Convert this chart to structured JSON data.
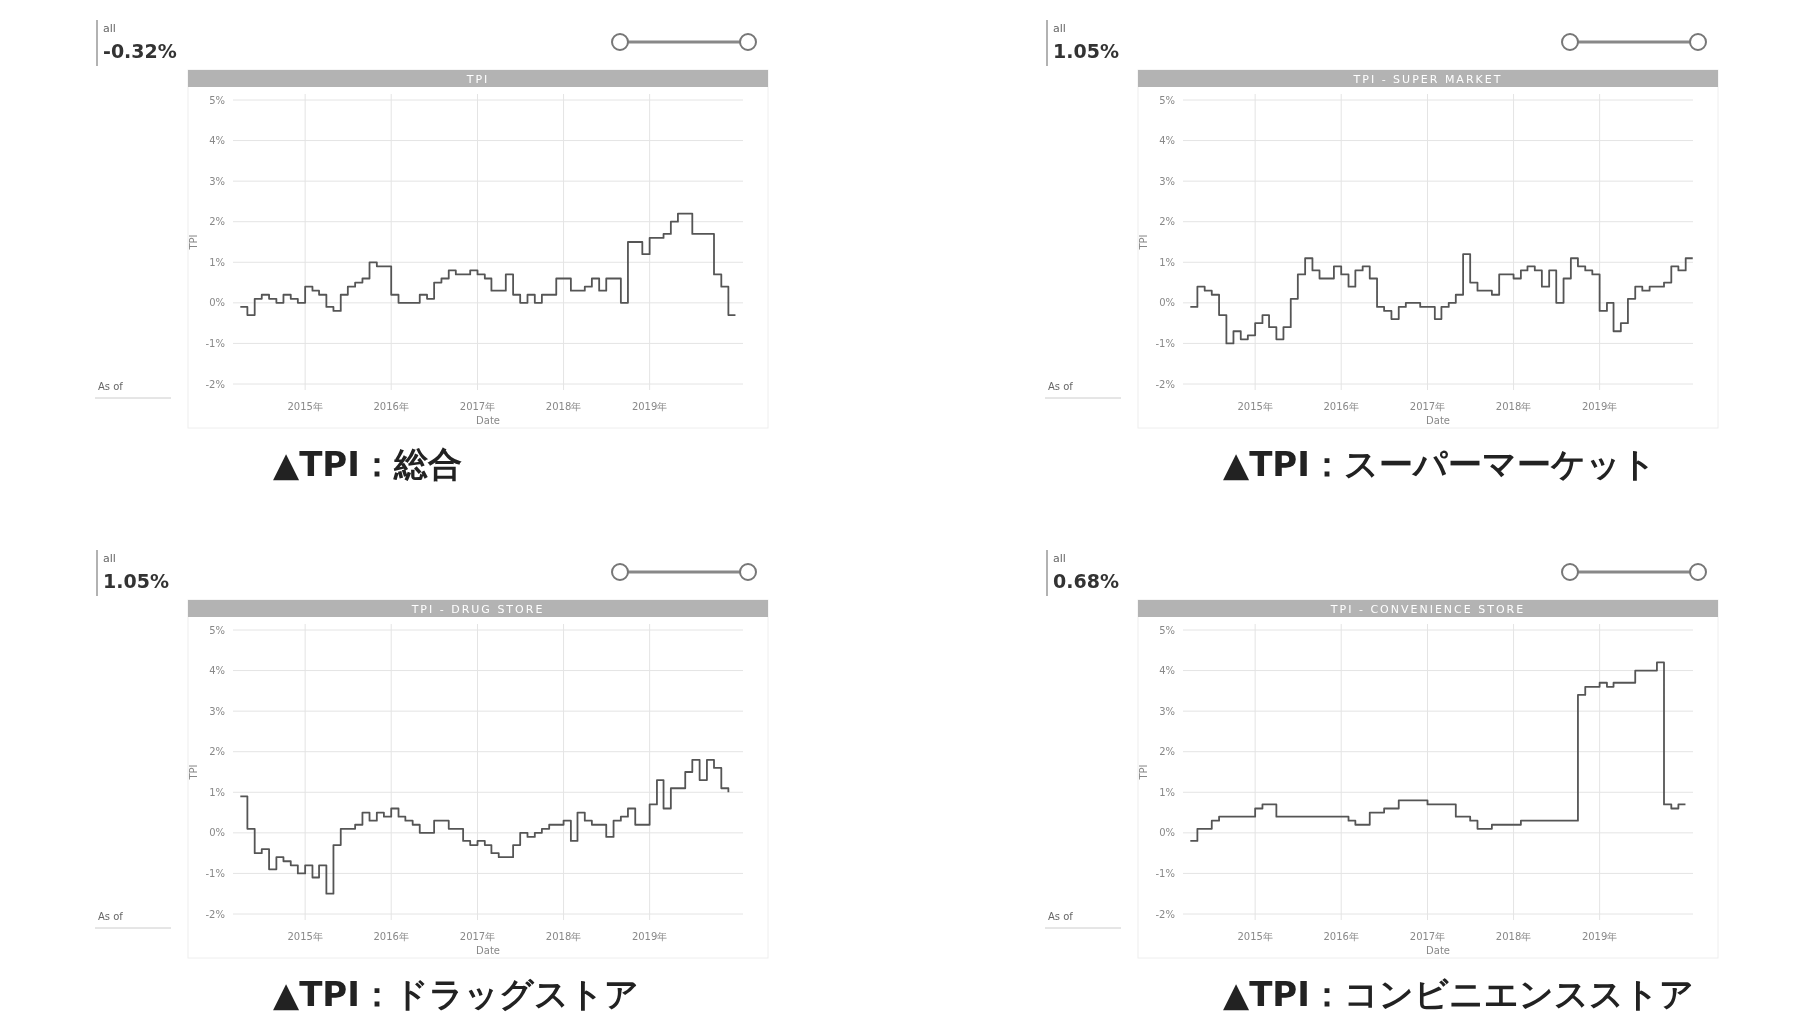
{
  "chart_data": [
    {
      "type": "step",
      "title": "TPI",
      "xlabel": "Date",
      "ylabel": "TPI",
      "xlim": [
        "2014-03",
        "2020-02"
      ],
      "xticks": [
        {
          "value": "2015-01",
          "label": "2015年"
        },
        {
          "value": "2016-01",
          "label": "2016年"
        },
        {
          "value": "2017-01",
          "label": "2017年"
        },
        {
          "value": "2018-01",
          "label": "2018年"
        },
        {
          "value": "2019-01",
          "label": "2019年"
        }
      ],
      "ylim": [
        -2,
        5
      ],
      "yticks": [
        {
          "value": 5,
          "label": "5%"
        },
        {
          "value": 4,
          "label": "4%"
        },
        {
          "value": 3,
          "label": "3%"
        },
        {
          "value": 2,
          "label": "2%"
        },
        {
          "value": 1,
          "label": "1%"
        },
        {
          "value": 0,
          "label": "0%"
        },
        {
          "value": -1,
          "label": "-1%"
        },
        {
          "value": -2,
          "label": "-2%"
        }
      ],
      "grid": true,
      "annotations": [
        "all",
        "-0.32%",
        "As of",
        "▲TPI：総合"
      ],
      "x": [
        "2014-04",
        "2014-05",
        "2014-06",
        "2014-07",
        "2014-08",
        "2014-09",
        "2014-10",
        "2014-11",
        "2014-12",
        "2015-01",
        "2015-02",
        "2015-03",
        "2015-04",
        "2015-05",
        "2015-06",
        "2015-07",
        "2015-08",
        "2015-09",
        "2015-10",
        "2015-11",
        "2016-01",
        "2016-02",
        "2016-03",
        "2016-05",
        "2016-06",
        "2016-07",
        "2016-08",
        "2016-09",
        "2016-10",
        "2016-12",
        "2017-01",
        "2017-02",
        "2017-03",
        "2017-05",
        "2017-06",
        "2017-07",
        "2017-08",
        "2017-09",
        "2017-10",
        "2017-12",
        "2018-02",
        "2018-04",
        "2018-05",
        "2018-06",
        "2018-07",
        "2018-09",
        "2018-10",
        "2018-12",
        "2019-01",
        "2019-03",
        "2019-04",
        "2019-05",
        "2019-07",
        "2019-08",
        "2019-10",
        "2019-11",
        "2019-12",
        "2019-12-31"
      ],
      "series": [
        {
          "color": "#555555",
          "values": [
            -0.1,
            -0.3,
            0.1,
            0.2,
            0.1,
            0.0,
            0.2,
            0.1,
            0.0,
            0.4,
            0.3,
            0.2,
            -0.1,
            -0.2,
            0.2,
            0.4,
            0.5,
            0.6,
            1.0,
            0.9,
            0.2,
            0.0,
            0.0,
            0.2,
            0.1,
            0.5,
            0.6,
            0.8,
            0.7,
            0.8,
            0.7,
            0.6,
            0.3,
            0.7,
            0.2,
            0.0,
            0.2,
            0.0,
            0.2,
            0.6,
            0.3,
            0.4,
            0.6,
            0.3,
            0.6,
            0.0,
            1.5,
            1.2,
            1.6,
            1.7,
            2.0,
            2.2,
            1.7,
            1.7,
            0.7,
            0.4,
            -0.3,
            -0.3
          ]
        }
      ]
    },
    {
      "type": "step",
      "title": "TPI - SUPER MARKET",
      "xlabel": "Date",
      "ylabel": "TPI",
      "xlim": [
        "2014-03",
        "2020-02"
      ],
      "xticks": [
        {
          "value": "2015-01",
          "label": "2015年"
        },
        {
          "value": "2016-01",
          "label": "2016年"
        },
        {
          "value": "2017-01",
          "label": "2017年"
        },
        {
          "value": "2018-01",
          "label": "2018年"
        },
        {
          "value": "2019-01",
          "label": "2019年"
        }
      ],
      "ylim": [
        -2,
        5
      ],
      "yticks": [
        {
          "value": 5,
          "label": "5%"
        },
        {
          "value": 4,
          "label": "4%"
        },
        {
          "value": 3,
          "label": "3%"
        },
        {
          "value": 2,
          "label": "2%"
        },
        {
          "value": 1,
          "label": "1%"
        },
        {
          "value": 0,
          "label": "0%"
        },
        {
          "value": -1,
          "label": "-1%"
        },
        {
          "value": -2,
          "label": "-2%"
        }
      ],
      "grid": true,
      "annotations": [
        "all",
        "1.05%",
        "As of",
        "▲TPI：スーパーマーケット"
      ],
      "x": [
        "2014-04",
        "2014-05",
        "2014-06",
        "2014-07",
        "2014-08",
        "2014-09",
        "2014-10",
        "2014-11",
        "2014-12",
        "2015-01",
        "2015-02",
        "2015-03",
        "2015-04",
        "2015-05",
        "2015-06",
        "2015-07",
        "2015-08",
        "2015-09",
        "2015-10",
        "2015-12",
        "2016-01",
        "2016-02",
        "2016-03",
        "2016-04",
        "2016-05",
        "2016-06",
        "2016-07",
        "2016-08",
        "2016-09",
        "2016-10",
        "2016-12",
        "2017-01",
        "2017-02",
        "2017-03",
        "2017-04",
        "2017-05",
        "2017-06",
        "2017-07",
        "2017-08",
        "2017-10",
        "2017-11",
        "2018-01",
        "2018-02",
        "2018-03",
        "2018-04",
        "2018-05",
        "2018-06",
        "2018-07",
        "2018-08",
        "2018-09",
        "2018-10",
        "2018-11",
        "2018-12",
        "2019-01",
        "2019-02",
        "2019-03",
        "2019-04",
        "2019-05",
        "2019-06",
        "2019-07",
        "2019-08",
        "2019-10",
        "2019-11",
        "2019-12",
        "2020-01",
        "2020-01-31"
      ],
      "series": [
        {
          "color": "#555555",
          "values": [
            -0.1,
            0.4,
            0.3,
            0.2,
            -0.3,
            -1.0,
            -0.7,
            -0.9,
            -0.8,
            -0.5,
            -0.3,
            -0.6,
            -0.9,
            -0.6,
            0.1,
            0.7,
            1.1,
            0.8,
            0.6,
            0.9,
            0.7,
            0.4,
            0.8,
            0.9,
            0.6,
            -0.1,
            -0.2,
            -0.4,
            -0.1,
            0.0,
            -0.1,
            -0.1,
            -0.4,
            -0.1,
            0.0,
            0.2,
            1.2,
            0.5,
            0.3,
            0.2,
            0.7,
            0.6,
            0.8,
            0.9,
            0.8,
            0.4,
            0.8,
            0.0,
            0.6,
            1.1,
            0.9,
            0.8,
            0.7,
            -0.2,
            0.0,
            -0.7,
            -0.5,
            0.1,
            0.4,
            0.3,
            0.4,
            0.5,
            0.9,
            0.8,
            1.1,
            1.1
          ]
        }
      ]
    },
    {
      "type": "step",
      "title": "TPI - DRUG STORE",
      "xlabel": "Date",
      "ylabel": "TPI",
      "xlim": [
        "2014-03",
        "2020-02"
      ],
      "xticks": [
        {
          "value": "2015-01",
          "label": "2015年"
        },
        {
          "value": "2016-01",
          "label": "2016年"
        },
        {
          "value": "2017-01",
          "label": "2017年"
        },
        {
          "value": "2018-01",
          "label": "2018年"
        },
        {
          "value": "2019-01",
          "label": "2019年"
        }
      ],
      "ylim": [
        -2,
        5
      ],
      "yticks": [
        {
          "value": 5,
          "label": "5%"
        },
        {
          "value": 4,
          "label": "4%"
        },
        {
          "value": 3,
          "label": "3%"
        },
        {
          "value": 2,
          "label": "2%"
        },
        {
          "value": 1,
          "label": "1%"
        },
        {
          "value": 0,
          "label": "0%"
        },
        {
          "value": -1,
          "label": "-1%"
        },
        {
          "value": -2,
          "label": "-2%"
        }
      ],
      "grid": true,
      "annotations": [
        "all",
        "1.05%",
        "As of",
        "▲TPI：ドラッグストア"
      ],
      "x": [
        "2014-04",
        "2014-05",
        "2014-06",
        "2014-07",
        "2014-08",
        "2014-09",
        "2014-10",
        "2014-11",
        "2014-12",
        "2015-01",
        "2015-02",
        "2015-03",
        "2015-04",
        "2015-05",
        "2015-06",
        "2015-07",
        "2015-08",
        "2015-09",
        "2015-10",
        "2015-11",
        "2015-12",
        "2016-01",
        "2016-02",
        "2016-03",
        "2016-04",
        "2016-05",
        "2016-07",
        "2016-09",
        "2016-11",
        "2016-12",
        "2017-01",
        "2017-02",
        "2017-03",
        "2017-04",
        "2017-06",
        "2017-07",
        "2017-08",
        "2017-09",
        "2017-10",
        "2017-11",
        "2018-01",
        "2018-02",
        "2018-03",
        "2018-04",
        "2018-05",
        "2018-07",
        "2018-08",
        "2018-09",
        "2018-10",
        "2018-11",
        "2019-01",
        "2019-02",
        "2019-03",
        "2019-04",
        "2019-06",
        "2019-07",
        "2019-08",
        "2019-09",
        "2019-10",
        "2019-11",
        "2019-12"
      ],
      "series": [
        {
          "color": "#555555",
          "values": [
            0.9,
            0.1,
            -0.5,
            -0.4,
            -0.9,
            -0.6,
            -0.7,
            -0.8,
            -1.0,
            -0.8,
            -1.1,
            -0.8,
            -1.5,
            -0.3,
            0.1,
            0.1,
            0.2,
            0.5,
            0.3,
            0.5,
            0.4,
            0.6,
            0.4,
            0.3,
            0.2,
            0.0,
            0.3,
            0.1,
            -0.2,
            -0.3,
            -0.2,
            -0.3,
            -0.5,
            -0.6,
            -0.3,
            0.0,
            -0.1,
            0.0,
            0.1,
            0.2,
            0.3,
            -0.2,
            0.5,
            0.3,
            0.2,
            -0.1,
            0.3,
            0.4,
            0.6,
            0.2,
            0.7,
            1.3,
            0.6,
            1.1,
            1.5,
            1.8,
            1.3,
            1.8,
            1.6,
            1.1,
            1.0
          ]
        }
      ]
    },
    {
      "type": "step",
      "title": "TPI - CONVENIENCE STORE",
      "xlabel": "Date",
      "ylabel": "TPI",
      "xlim": [
        "2014-03",
        "2020-02"
      ],
      "xticks": [
        {
          "value": "2015-01",
          "label": "2015年"
        },
        {
          "value": "2016-01",
          "label": "2016年"
        },
        {
          "value": "2017-01",
          "label": "2017年"
        },
        {
          "value": "2018-01",
          "label": "2018年"
        },
        {
          "value": "2019-01",
          "label": "2019年"
        }
      ],
      "ylim": [
        -2,
        5
      ],
      "yticks": [
        {
          "value": 5,
          "label": "5%"
        },
        {
          "value": 4,
          "label": "4%"
        },
        {
          "value": 3,
          "label": "3%"
        },
        {
          "value": 2,
          "label": "2%"
        },
        {
          "value": 1,
          "label": "1%"
        },
        {
          "value": 0,
          "label": "0%"
        },
        {
          "value": -1,
          "label": "-1%"
        },
        {
          "value": -2,
          "label": "-2%"
        }
      ],
      "grid": true,
      "annotations": [
        "all",
        "0.68%",
        "As of",
        "▲TPI：コンビニエンスストア"
      ],
      "x": [
        "2014-04",
        "2014-05",
        "2014-07",
        "2014-08",
        "2014-10",
        "2014-12",
        "2015-01",
        "2015-02",
        "2015-04",
        "2016-01",
        "2016-02",
        "2016-03",
        "2016-05",
        "2016-07",
        "2016-09",
        "2016-10",
        "2017-01",
        "2017-02",
        "2017-05",
        "2017-07",
        "2017-08",
        "2017-10",
        "2018-02",
        "2018-05",
        "2018-10",
        "2018-11",
        "2019-01",
        "2019-02",
        "2019-03",
        "2019-06",
        "2019-08",
        "2019-09",
        "2019-10",
        "2019-11",
        "2019-12",
        "2019-12-31"
      ],
      "series": [
        {
          "color": "#555555",
          "values": [
            -0.2,
            0.1,
            0.3,
            0.4,
            0.4,
            0.4,
            0.6,
            0.7,
            0.4,
            0.4,
            0.3,
            0.2,
            0.5,
            0.6,
            0.8,
            0.8,
            0.7,
            0.7,
            0.4,
            0.3,
            0.1,
            0.2,
            0.3,
            0.3,
            3.4,
            3.6,
            3.7,
            3.6,
            3.7,
            4.0,
            4.0,
            4.2,
            0.7,
            0.6,
            0.7,
            0.7
          ]
        }
      ]
    }
  ]
}
